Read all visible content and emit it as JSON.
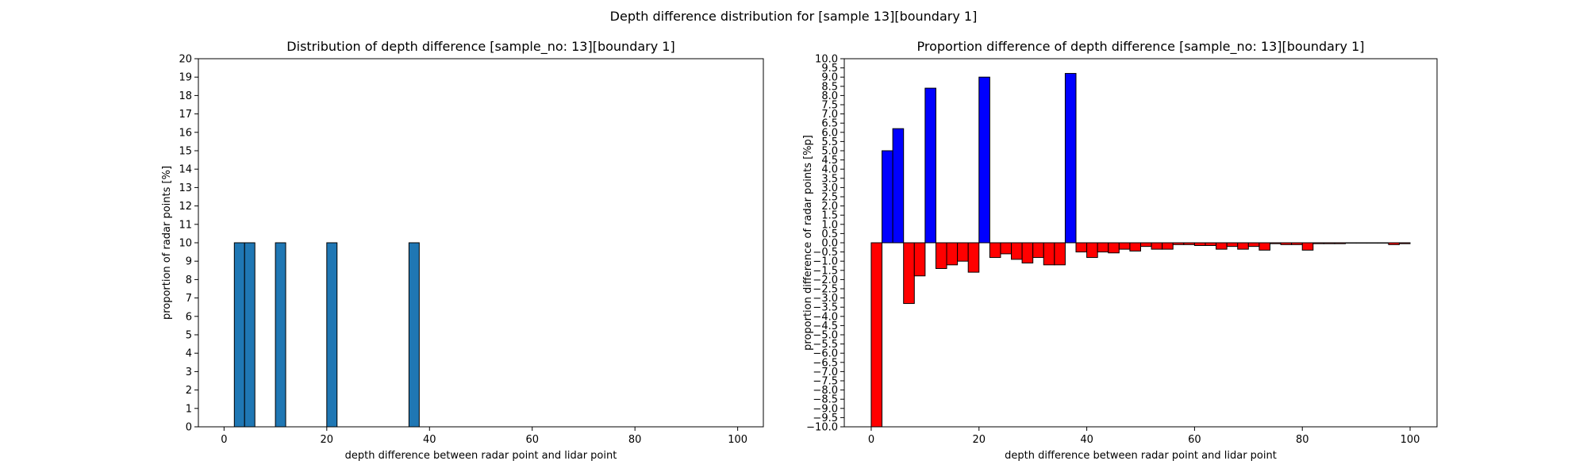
{
  "figure": {
    "suptitle": "Depth difference distribution for [sample 13][boundary 1]"
  },
  "chart_data": [
    {
      "type": "bar",
      "title": "Distribution of depth difference [sample_no: 13][boundary 1]",
      "xlabel": "depth difference between radar point and lidar point",
      "ylabel": "proportion of radar points [%]",
      "xlim": [
        -5,
        105
      ],
      "ylim": [
        0,
        20
      ],
      "xticks": [
        0,
        20,
        40,
        60,
        80,
        100
      ],
      "yticks": [
        0,
        1,
        2,
        3,
        4,
        5,
        6,
        7,
        8,
        9,
        10,
        11,
        12,
        13,
        14,
        15,
        16,
        17,
        18,
        19,
        20
      ],
      "bar_width": 2,
      "bar_color": "#1f77b4",
      "edge_color": "#000000",
      "grid": false,
      "bars": [
        {
          "x": 3,
          "y": 10
        },
        {
          "x": 5,
          "y": 10
        },
        {
          "x": 11,
          "y": 10
        },
        {
          "x": 21,
          "y": 10
        },
        {
          "x": 37,
          "y": 10
        }
      ]
    },
    {
      "type": "bar",
      "title": "Proportion difference of depth difference [sample_no: 13][boundary 1]",
      "xlabel": "depth difference between radar point and lidar point",
      "ylabel": "proportion difference of radar points [%p]",
      "xlim": [
        -5,
        105
      ],
      "ylim": [
        -10,
        10
      ],
      "xticks": [
        0,
        20,
        40,
        60,
        80,
        100
      ],
      "yticks": [
        -10.0,
        -9.5,
        -9.0,
        -8.5,
        -8.0,
        -7.5,
        -7.0,
        -6.5,
        -6.0,
        -5.5,
        -5.0,
        -4.5,
        -4.0,
        -3.5,
        -3.0,
        -2.5,
        -2.0,
        -1.5,
        -1.0,
        -0.5,
        0.0,
        0.5,
        1.0,
        1.5,
        2.0,
        2.5,
        3.0,
        3.5,
        4.0,
        4.5,
        5.0,
        5.5,
        6.0,
        6.5,
        7.0,
        7.5,
        8.0,
        8.5,
        9.0,
        9.5,
        10.0
      ],
      "bar_width": 2,
      "positive_color": "#0000ff",
      "negative_color": "#ff0000",
      "edge_color": "#000000",
      "grid": false,
      "bars": [
        {
          "x": 1,
          "y": -10.0
        },
        {
          "x": 3,
          "y": 5.0
        },
        {
          "x": 5,
          "y": 6.2
        },
        {
          "x": 7,
          "y": -3.3
        },
        {
          "x": 9,
          "y": -1.8
        },
        {
          "x": 11,
          "y": 8.4
        },
        {
          "x": 13,
          "y": -1.4
        },
        {
          "x": 15,
          "y": -1.2
        },
        {
          "x": 17,
          "y": -1.0
        },
        {
          "x": 19,
          "y": -1.6
        },
        {
          "x": 21,
          "y": 9.0
        },
        {
          "x": 23,
          "y": -0.8
        },
        {
          "x": 25,
          "y": -0.6
        },
        {
          "x": 27,
          "y": -0.9
        },
        {
          "x": 29,
          "y": -1.1
        },
        {
          "x": 31,
          "y": -0.8
        },
        {
          "x": 33,
          "y": -1.2
        },
        {
          "x": 35,
          "y": -1.2
        },
        {
          "x": 37,
          "y": 9.2
        },
        {
          "x": 39,
          "y": -0.5
        },
        {
          "x": 41,
          "y": -0.8
        },
        {
          "x": 43,
          "y": -0.5
        },
        {
          "x": 45,
          "y": -0.55
        },
        {
          "x": 47,
          "y": -0.35
        },
        {
          "x": 49,
          "y": -0.45
        },
        {
          "x": 51,
          "y": -0.2
        },
        {
          "x": 53,
          "y": -0.35
        },
        {
          "x": 55,
          "y": -0.35
        },
        {
          "x": 57,
          "y": -0.1
        },
        {
          "x": 59,
          "y": -0.1
        },
        {
          "x": 61,
          "y": -0.15
        },
        {
          "x": 63,
          "y": -0.15
        },
        {
          "x": 65,
          "y": -0.35
        },
        {
          "x": 67,
          "y": -0.2
        },
        {
          "x": 69,
          "y": -0.35
        },
        {
          "x": 71,
          "y": -0.2
        },
        {
          "x": 73,
          "y": -0.4
        },
        {
          "x": 75,
          "y": -0.05
        },
        {
          "x": 77,
          "y": -0.1
        },
        {
          "x": 79,
          "y": -0.1
        },
        {
          "x": 81,
          "y": -0.4
        },
        {
          "x": 83,
          "y": -0.05
        },
        {
          "x": 85,
          "y": -0.05
        },
        {
          "x": 87,
          "y": -0.05
        },
        {
          "x": 89,
          "y": -0.02
        },
        {
          "x": 91,
          "y": -0.02
        },
        {
          "x": 93,
          "y": -0.02
        },
        {
          "x": 95,
          "y": -0.02
        },
        {
          "x": 97,
          "y": -0.1
        },
        {
          "x": 99,
          "y": -0.05
        }
      ]
    }
  ]
}
